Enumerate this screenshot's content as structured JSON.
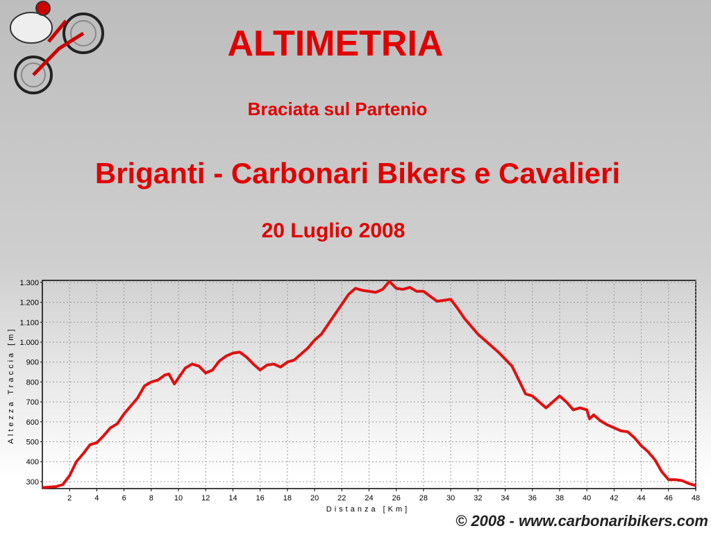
{
  "chart_data": {
    "type": "line",
    "title": "ALTIMETRIA",
    "subtitle": "Braciata sul Partenio",
    "heading": "Briganti - Carbonari Bikers e Cavalieri",
    "date": "20 Luglio 2008",
    "footer": "© 2008 - www.carbonaribikers.com",
    "x_label": "Distanza [Km]",
    "y_label": "Altezza Traccia [m]",
    "color": "#e01010",
    "grid": true,
    "xlim": [
      0,
      48
    ],
    "ylim": [
      265,
      1310
    ],
    "xticks": [
      2,
      4,
      6,
      8,
      10,
      12,
      14,
      16,
      18,
      20,
      22,
      24,
      26,
      28,
      30,
      32,
      34,
      36,
      38,
      40,
      42,
      44,
      46,
      48
    ],
    "yticks": [
      300,
      400,
      500,
      600,
      700,
      800,
      900,
      {
        "value": 1000,
        "label": "1.000"
      },
      {
        "value": 1100,
        "label": "1.100"
      },
      {
        "value": 1200,
        "label": "1.200"
      },
      {
        "value": 1300,
        "label": "1.300"
      }
    ],
    "x": [
      0,
      1,
      1.5,
      2,
      2.5,
      3,
      3.5,
      4,
      4.5,
      5,
      5.5,
      6,
      7,
      7.5,
      8,
      8.5,
      9,
      9.3,
      9.7,
      10,
      10.5,
      11,
      11.5,
      12,
      12.5,
      13,
      13.5,
      14,
      14.5,
      15,
      15.5,
      16,
      16.5,
      17,
      17.5,
      18,
      18.5,
      19,
      19.5,
      20,
      20.5,
      21,
      21.5,
      22,
      22.5,
      23,
      23.5,
      24,
      24.5,
      25,
      25.5,
      26,
      26.5,
      27,
      27.5,
      28,
      28.5,
      29,
      29.5,
      30,
      30.5,
      31,
      32,
      32.5,
      33,
      33.5,
      34,
      34.5,
      35,
      35.5,
      36,
      36.5,
      37,
      37.5,
      38,
      38.5,
      39,
      39.5,
      40,
      40.2,
      40.5,
      41,
      41.5,
      42,
      42.5,
      43,
      43.5,
      44,
      44.5,
      45,
      45.5,
      46,
      46.5,
      47,
      47.5,
      48
    ],
    "values": [
      270,
      275,
      285,
      330,
      400,
      440,
      485,
      495,
      530,
      570,
      590,
      640,
      720,
      780,
      800,
      810,
      835,
      840,
      790,
      820,
      870,
      890,
      880,
      845,
      860,
      905,
      930,
      945,
      950,
      925,
      890,
      860,
      885,
      890,
      875,
      900,
      910,
      940,
      970,
      1010,
      1040,
      1090,
      1140,
      1190,
      1240,
      1270,
      1260,
      1255,
      1250,
      1265,
      1305,
      1270,
      1265,
      1275,
      1255,
      1255,
      1230,
      1205,
      1210,
      1215,
      1170,
      1120,
      1040,
      1010,
      980,
      950,
      915,
      880,
      810,
      740,
      730,
      700,
      670,
      700,
      730,
      700,
      660,
      670,
      660,
      615,
      635,
      605,
      585,
      570,
      555,
      550,
      520,
      480,
      450,
      410,
      350,
      310,
      310,
      305,
      290,
      280
    ]
  }
}
